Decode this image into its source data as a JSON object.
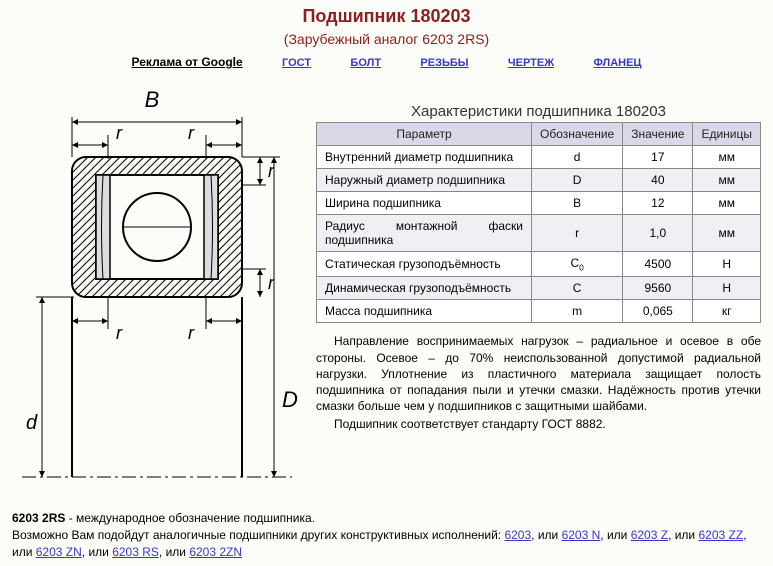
{
  "title": "Подшипник 180203",
  "subtitle": "(Зарубежный аналог 6203 2RS)",
  "nav": {
    "ad": "Реклама от Google",
    "links": [
      "ГОСТ",
      "БОЛТ",
      "РЕЗЬБЫ",
      "ЧЕРТЕЖ",
      "ФЛАНЕЦ"
    ]
  },
  "diagram": {
    "labels": {
      "B": "B",
      "r": "r",
      "d": "d",
      "D": "D"
    },
    "colors": {
      "line": "#000000",
      "fill": "#cccccc",
      "hatch": "#000000",
      "arrow": "#000000",
      "bg": "#fcfcf8"
    }
  },
  "spec": {
    "caption": "Характеристики подшипника 180203",
    "headers": [
      "Параметр",
      "Обозначение",
      "Значение",
      "Единицы"
    ],
    "rows": [
      [
        "Внутренний диаметр подшипника",
        "d",
        "17",
        "мм"
      ],
      [
        "Наружный диаметр подшипника",
        "D",
        "40",
        "мм"
      ],
      [
        "Ширина подшипника",
        "B",
        "12",
        "мм"
      ],
      [
        "Радиус монтажной фаски подшипника",
        "r",
        "1,0",
        "мм"
      ],
      [
        "Статическая грузоподъёмность",
        "C0",
        "4500",
        "Н"
      ],
      [
        "Динамическая грузоподъёмность",
        "C",
        "9560",
        "Н"
      ],
      [
        "Масса подшипника",
        "m",
        "0,065",
        "кг"
      ]
    ]
  },
  "description": {
    "p1": "Направление воспринимаемых нагрузок – радиальное и осевое в обе стороны. Осевое – до 70% неиспользованной допустимой радиальной нагрузки. Уплотнение из пластичного материала защищает полость подшипника от попадания пыли и утечки смазки. Надёжность против утечки смазки больше чем у подшипников с защитными шайбами.",
    "p2": "Подшипник соответствует стандарту ГОСТ 8882."
  },
  "footer": {
    "line1a": "6203 2RS",
    "line1b": " - международное обозначение подшипника.",
    "line2_pre": "Возможно Вам подойдут аналогичные подшипники других конструктивных исполнений: ",
    "alts": [
      "6203",
      "6203 N",
      "6203 Z",
      "6203 ZZ",
      "6203 ZN",
      "6203 RS",
      "6203 2ZN"
    ],
    "sep": ", или "
  }
}
